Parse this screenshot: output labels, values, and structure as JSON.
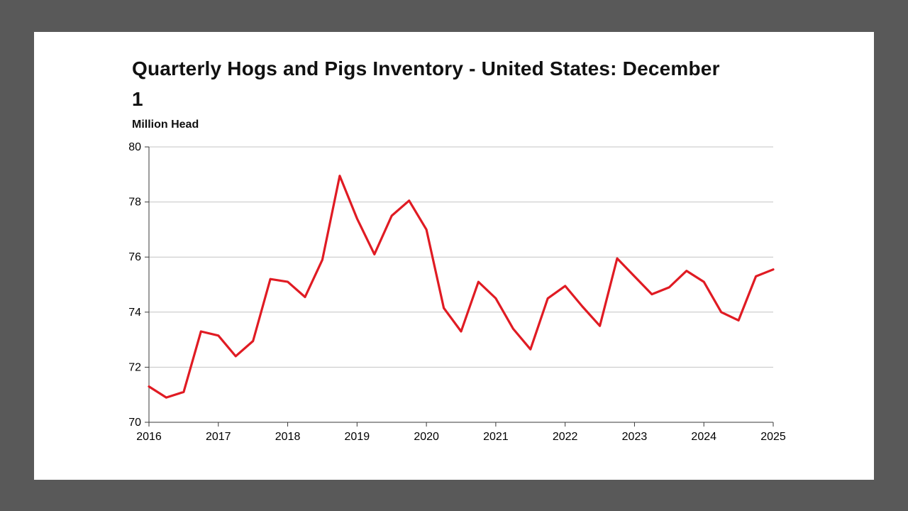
{
  "chart": {
    "title": "Quarterly Hogs and Pigs Inventory - United States: December 1",
    "unit_label": "Million Head"
  },
  "colors": {
    "line": "#e01b23",
    "grid": "#c4c4c4",
    "axis": "#3a3a3a",
    "tick_text": "#000000",
    "slide_background": "#ffffff",
    "page_background": "#595959"
  },
  "chart_data": {
    "type": "line",
    "title": "Quarterly Hogs and Pigs Inventory - United States: December 1",
    "xlabel": "",
    "ylabel": "Million Head",
    "xlim": [
      2016,
      2025
    ],
    "ylim": [
      70,
      80
    ],
    "xticks": [
      2016,
      2017,
      2018,
      2019,
      2020,
      2021,
      2022,
      2023,
      2024,
      2025
    ],
    "yticks": [
      70,
      72,
      74,
      76,
      78,
      80
    ],
    "grid": "horizontal",
    "legend": "none",
    "line_color": "#e01b23",
    "x": [
      2016.0,
      2016.25,
      2016.5,
      2016.75,
      2017.0,
      2017.25,
      2017.5,
      2017.75,
      2018.0,
      2018.25,
      2018.5,
      2018.75,
      2019.0,
      2019.25,
      2019.5,
      2019.75,
      2020.0,
      2020.25,
      2020.5,
      2020.75,
      2021.0,
      2021.25,
      2021.5,
      2021.75,
      2022.0,
      2022.25,
      2022.5,
      2022.75,
      2023.0,
      2023.25,
      2023.5,
      2023.75,
      2024.0,
      2024.25,
      2024.5,
      2024.75,
      2025.0
    ],
    "values": [
      71.3,
      70.9,
      71.1,
      73.3,
      73.15,
      72.4,
      72.95,
      75.2,
      75.1,
      74.55,
      75.9,
      78.95,
      77.4,
      76.1,
      77.5,
      78.05,
      77.0,
      74.15,
      73.3,
      75.1,
      74.5,
      73.4,
      72.65,
      74.5,
      74.95,
      74.2,
      73.5,
      75.95,
      75.3,
      74.65,
      74.9,
      75.5,
      75.1,
      74.0,
      73.7,
      75.3,
      75.55
    ]
  }
}
